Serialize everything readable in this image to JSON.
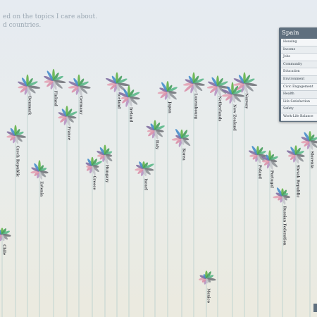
{
  "intro": {
    "line1": "ed on the topics I care about.",
    "line2": "d countries."
  },
  "panel": {
    "title": "Spain",
    "items": [
      "Housing",
      "Income",
      "Jobs",
      "Community",
      "Education",
      "Environment",
      "Civic Engagement",
      "Health",
      "Life Satisfaction",
      "Safety",
      "Work-Life Balance"
    ]
  },
  "colors": {
    "housing": "#b38fbf",
    "income": "#d98ca6",
    "jobs": "#e3a0b2",
    "community": "#7c6a9e",
    "education": "#3d88c9",
    "environment": "#5bb03f",
    "civic": "#3d9a56",
    "health": "#54b584",
    "life": "#6c6f74",
    "safety": "#8b8f94",
    "worklife": "#c3c6ca",
    "stem": "#b8cfcc",
    "panel_bg": "#5f6f7e"
  },
  "chart_data": {
    "type": "flower",
    "petal_order": [
      "housing",
      "income",
      "jobs",
      "community",
      "education",
      "environment",
      "civic",
      "health",
      "life",
      "safety",
      "worklife"
    ],
    "countries": [
      {
        "name": "Chile",
        "height": 0.3,
        "scores": [
          0.35,
          0.3,
          0.45,
          0.4,
          0.3,
          0.35,
          0.4,
          0.5,
          0.55,
          0.4,
          0.35
        ]
      },
      {
        "name": "Czech Republic",
        "height": 0.66,
        "scores": [
          0.45,
          0.4,
          0.55,
          0.6,
          0.55,
          0.7,
          0.45,
          0.55,
          0.7,
          0.55,
          0.5
        ]
      },
      {
        "name": "Denmark",
        "height": 0.84,
        "scores": [
          0.55,
          0.6,
          0.6,
          0.7,
          0.65,
          0.8,
          0.6,
          0.75,
          0.9,
          0.7,
          0.8
        ]
      },
      {
        "name": "Estonia",
        "height": 0.53,
        "scores": [
          0.4,
          0.35,
          0.55,
          0.55,
          0.6,
          0.75,
          0.4,
          0.45,
          0.55,
          0.5,
          0.5
        ]
      },
      {
        "name": "Finland",
        "height": 0.86,
        "scores": [
          0.55,
          0.55,
          0.6,
          0.7,
          0.8,
          0.8,
          0.6,
          0.7,
          0.85,
          0.8,
          0.6
        ]
      },
      {
        "name": "France",
        "height": 0.73,
        "scores": [
          0.55,
          0.55,
          0.55,
          0.6,
          0.55,
          0.7,
          0.55,
          0.75,
          0.6,
          0.55,
          0.65
        ]
      },
      {
        "name": "Germany",
        "height": 0.84,
        "scores": [
          0.55,
          0.6,
          0.7,
          0.75,
          0.6,
          0.8,
          0.55,
          0.7,
          0.8,
          0.75,
          0.7
        ]
      },
      {
        "name": "Greece",
        "height": 0.55,
        "scores": [
          0.45,
          0.4,
          0.3,
          0.4,
          0.5,
          0.55,
          0.5,
          0.7,
          0.35,
          0.55,
          0.65
        ]
      },
      {
        "name": "Hungary",
        "height": 0.59,
        "scores": [
          0.4,
          0.35,
          0.45,
          0.55,
          0.55,
          0.65,
          0.45,
          0.45,
          0.4,
          0.6,
          0.6
        ]
      },
      {
        "name": "Iceland",
        "height": 0.85,
        "scores": [
          0.55,
          0.55,
          0.65,
          0.85,
          0.55,
          0.75,
          0.55,
          0.75,
          0.9,
          0.8,
          0.5
        ]
      },
      {
        "name": "Ireland",
        "height": 0.8,
        "scores": [
          0.65,
          0.55,
          0.45,
          0.75,
          0.6,
          0.8,
          0.55,
          0.8,
          0.75,
          0.75,
          0.6
        ]
      },
      {
        "name": "Israel",
        "height": 0.54,
        "scores": [
          0.45,
          0.45,
          0.55,
          0.5,
          0.5,
          0.4,
          0.4,
          0.75,
          0.65,
          0.55,
          0.45
        ]
      },
      {
        "name": "Italy",
        "height": 0.68,
        "scores": [
          0.5,
          0.55,
          0.45,
          0.6,
          0.45,
          0.65,
          0.55,
          0.7,
          0.55,
          0.65,
          0.6
        ]
      },
      {
        "name": "Japan",
        "height": 0.82,
        "scores": [
          0.5,
          0.6,
          0.65,
          0.55,
          0.75,
          0.7,
          0.45,
          0.7,
          0.55,
          0.8,
          0.45
        ]
      },
      {
        "name": "Korea",
        "height": 0.65,
        "scores": [
          0.55,
          0.45,
          0.65,
          0.35,
          0.75,
          0.55,
          0.65,
          0.45,
          0.4,
          0.75,
          0.35
        ]
      },
      {
        "name": "Luxembourg",
        "height": 0.85,
        "scores": [
          0.65,
          0.85,
          0.7,
          0.6,
          0.55,
          0.75,
          0.55,
          0.75,
          0.75,
          0.75,
          0.65
        ]
      },
      {
        "name": "Mexico",
        "height": 0.14,
        "scores": [
          0.3,
          0.25,
          0.45,
          0.4,
          0.2,
          0.45,
          0.5,
          0.45,
          0.6,
          0.25,
          0.2
        ]
      },
      {
        "name": "Netherlands",
        "height": 0.84,
        "scores": [
          0.65,
          0.65,
          0.7,
          0.7,
          0.7,
          0.7,
          0.6,
          0.75,
          0.85,
          0.75,
          0.75
        ]
      },
      {
        "name": "New Zealand",
        "height": 0.81,
        "scores": [
          0.6,
          0.55,
          0.7,
          0.8,
          0.6,
          0.85,
          0.65,
          0.85,
          0.85,
          0.75,
          0.5
        ]
      },
      {
        "name": "Norway",
        "height": 0.85,
        "scores": [
          0.6,
          0.65,
          0.75,
          0.8,
          0.65,
          0.75,
          0.65,
          0.75,
          0.9,
          0.8,
          0.75
        ]
      },
      {
        "name": "Poland",
        "height": 0.59,
        "scores": [
          0.4,
          0.35,
          0.5,
          0.65,
          0.7,
          0.55,
          0.55,
          0.55,
          0.55,
          0.6,
          0.55
        ]
      },
      {
        "name": "Portugal",
        "height": 0.57,
        "scores": [
          0.5,
          0.4,
          0.45,
          0.55,
          0.35,
          0.65,
          0.4,
          0.55,
          0.4,
          0.65,
          0.6
        ]
      },
      {
        "name": "Russian Federation",
        "height": 0.44,
        "scores": [
          0.35,
          0.3,
          0.6,
          0.4,
          0.65,
          0.45,
          0.4,
          0.3,
          0.45,
          0.3,
          0.55
        ]
      },
      {
        "name": "Slovak Republic",
        "height": 0.59,
        "scores": [
          0.45,
          0.4,
          0.45,
          0.65,
          0.6,
          0.6,
          0.5,
          0.55,
          0.55,
          0.65,
          0.55
        ]
      },
      {
        "name": "Slovenia",
        "height": 0.64,
        "scores": [
          0.5,
          0.45,
          0.55,
          0.6,
          0.7,
          0.65,
          0.45,
          0.55,
          0.55,
          0.65,
          0.55
        ]
      }
    ]
  }
}
